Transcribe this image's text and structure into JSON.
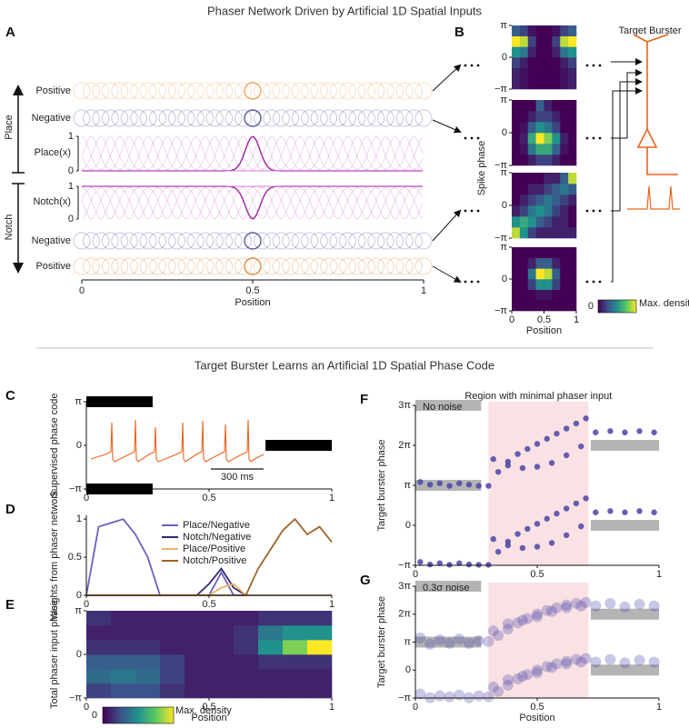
{
  "titles": {
    "top": "Phaser Network Driven by Artificial 1D Spatial Inputs",
    "bottom": "Target Burster Learns an Artificial 1D Spatial Phase Code"
  },
  "panel_a": {
    "label": "A",
    "rows": [
      "Positive",
      "Negative",
      "Place(x)",
      "Notch(x)",
      "Negative",
      "Positive"
    ],
    "groups": [
      "Place",
      "Notch"
    ],
    "place_ticks": [
      1,
      0
    ],
    "notch_ticks": [
      1,
      0
    ],
    "xlim": [
      0,
      1
    ],
    "xticks": [
      0,
      0.5,
      1
    ],
    "xlabel": "Position"
  },
  "panel_b": {
    "label": "B",
    "ylabel": "Spike phase",
    "target": "Target Burster",
    "colorbar_min": 0,
    "colorbar_max": "Max. density"
  },
  "chart_data": [
    {
      "type": "heatmap",
      "xlim": [
        0,
        1
      ],
      "ylim": [
        -3.1416,
        3.1416
      ],
      "yticks": [
        {
          "value": -3.1416,
          "label": "−π"
        },
        0,
        {
          "value": 3.1416,
          "label": "π"
        }
      ],
      "z": [
        [
          0.1,
          0.05,
          0,
          0,
          0,
          0,
          0.05,
          0.1
        ],
        [
          0.1,
          0.05,
          0,
          0,
          0,
          0,
          0.05,
          0.1
        ],
        [
          0.2,
          0.1,
          0,
          0,
          0,
          0,
          0.1,
          0.2
        ],
        [
          0.5,
          0.4,
          0.1,
          0,
          0,
          0.1,
          0.4,
          0.5
        ],
        [
          1,
          0.9,
          0.2,
          0,
          0,
          0.2,
          0.9,
          1
        ],
        [
          0.3,
          0.2,
          0.05,
          0,
          0,
          0.05,
          0.2,
          0.3
        ]
      ]
    },
    {
      "type": "heatmap",
      "xlim": [
        0,
        1
      ],
      "ylim": [
        -3.1416,
        3.1416
      ],
      "yticks": [
        {
          "value": -3.1416,
          "label": "−π"
        },
        0,
        {
          "value": 3.1416,
          "label": "π"
        }
      ],
      "z": [
        [
          0,
          0,
          0.1,
          0.2,
          0.2,
          0.1,
          0,
          0
        ],
        [
          0,
          0.05,
          0.4,
          0.6,
          0.6,
          0.3,
          0.05,
          0
        ],
        [
          0,
          0.1,
          0.6,
          1,
          0.8,
          0.5,
          0.1,
          0
        ],
        [
          0,
          0.05,
          0.3,
          0.5,
          0.4,
          0.2,
          0,
          0
        ],
        [
          0,
          0,
          0.1,
          0.2,
          0.2,
          0.1,
          0,
          0
        ],
        [
          0,
          0,
          0,
          0.3,
          0.1,
          0,
          0,
          0
        ]
      ]
    },
    {
      "type": "heatmap",
      "xlim": [
        0,
        1
      ],
      "ylim": [
        -3.1416,
        3.1416
      ],
      "yticks": [
        {
          "value": -3.1416,
          "label": "−π"
        },
        0,
        {
          "value": 3.1416,
          "label": "π"
        }
      ],
      "z": [
        [
          0.9,
          0.5,
          0.2,
          0.1,
          0.1,
          0.1,
          0.1,
          0.1
        ],
        [
          0.5,
          0.6,
          0.5,
          0.3,
          0.2,
          0.1,
          0.1,
          0
        ],
        [
          0.1,
          0.2,
          0.4,
          0.5,
          0.4,
          0.2,
          0.1,
          0
        ],
        [
          0,
          0.1,
          0.2,
          0.3,
          0.4,
          0.3,
          0.2,
          0.1
        ],
        [
          0,
          0,
          0.1,
          0.1,
          0.2,
          0.3,
          0.4,
          0.3
        ],
        [
          0,
          0,
          0,
          0,
          0.1,
          0.1,
          0.3,
          0.9
        ]
      ]
    },
    {
      "type": "heatmap",
      "xlim": [
        0,
        1
      ],
      "ylim": [
        -3.1416,
        3.1416
      ],
      "yticks": [
        {
          "value": -3.1416,
          "label": "−π"
        },
        0,
        {
          "value": 3.1416,
          "label": "π"
        }
      ],
      "xticks": [
        0,
        0.5,
        1
      ],
      "xlabel": "Position",
      "z": [
        [
          0,
          0,
          0,
          0,
          0,
          0,
          0,
          0
        ],
        [
          0,
          0,
          0,
          0.05,
          0.05,
          0,
          0,
          0
        ],
        [
          0,
          0,
          0.2,
          0.5,
          0.5,
          0.2,
          0,
          0
        ],
        [
          0,
          0,
          0.4,
          1,
          0.9,
          0.3,
          0,
          0
        ],
        [
          0,
          0,
          0.1,
          0.3,
          0.3,
          0.1,
          0,
          0
        ],
        [
          0,
          0,
          0,
          0,
          0,
          0,
          0,
          0
        ]
      ]
    },
    {
      "type": "segments",
      "label": "C",
      "ylabel": "Supervised phase code",
      "xlim": [
        0,
        1
      ],
      "ylim": [
        -3.1416,
        3.1416
      ],
      "yticks": [
        {
          "value": -3.1416,
          "label": "−π"
        },
        0,
        {
          "value": 3.1416,
          "label": "π"
        }
      ],
      "xticks": [
        0,
        0.5,
        1
      ],
      "segments": [
        {
          "x": [
            0,
            0.27
          ],
          "y": 3.1416
        },
        {
          "x": [
            0,
            0.27
          ],
          "y": -3.1416
        },
        {
          "x": [
            0.73,
            1
          ],
          "y": 0
        }
      ],
      "segment_color": "#000000",
      "scalebar": "300 ms"
    },
    {
      "type": "line",
      "label": "D",
      "ylabel": "Weights from phaser network",
      "xlim": [
        0,
        1
      ],
      "ylim": [
        0,
        1.05
      ],
      "yticks": [
        0,
        0.5,
        1
      ],
      "xticks": [
        0,
        0.5,
        1
      ],
      "x": [
        0,
        0.05,
        0.1,
        0.15,
        0.2,
        0.25,
        0.3,
        0.35,
        0.4,
        0.45,
        0.5,
        0.55,
        0.6,
        0.65,
        0.7,
        0.75,
        0.8,
        0.85,
        0.9,
        0.95,
        1
      ],
      "series": [
        {
          "name": "Place/Negative",
          "color": "#6a5fc4",
          "values": [
            0,
            0.9,
            0.95,
            1.0,
            0.8,
            0.5,
            0,
            0,
            0,
            0,
            0,
            0.3,
            0,
            0,
            0,
            0,
            0,
            0,
            0,
            0,
            0
          ]
        },
        {
          "name": "Notch/Negative",
          "color": "#2e2a6e",
          "values": [
            0,
            0,
            0,
            0,
            0,
            0,
            0,
            0,
            0,
            0,
            0.15,
            0.35,
            0.1,
            0,
            0,
            0,
            0,
            0,
            0,
            0,
            0
          ]
        },
        {
          "name": "Place/Positive",
          "color": "#f0b46a",
          "values": [
            0,
            0,
            0,
            0,
            0,
            0,
            0,
            0,
            0,
            0,
            0,
            0.1,
            0.15,
            0,
            0,
            0,
            0,
            0,
            0,
            0,
            0
          ]
        },
        {
          "name": "Notch/Positive",
          "color": "#a0632a",
          "values": [
            0,
            0,
            0,
            0,
            0,
            0,
            0,
            0,
            0,
            0,
            0,
            0,
            0,
            0,
            0.35,
            0.6,
            0.85,
            1.0,
            0.8,
            0.9,
            0.7
          ]
        }
      ]
    },
    {
      "type": "heatmap",
      "label": "E",
      "ylabel": "Total phaser input phase",
      "xlim": [
        0,
        1
      ],
      "ylim": [
        -3.1416,
        3.1416
      ],
      "yticks": [
        {
          "value": -3.1416,
          "label": "−π"
        },
        0,
        {
          "value": 3.1416,
          "label": "π"
        }
      ],
      "xticks": [
        0,
        0.5,
        1
      ],
      "xlabel": "Position",
      "colorbar_min": 0,
      "colorbar_max": "Max. density",
      "z": [
        [
          0.2,
          0.25,
          0.25,
          0.15,
          0.1,
          0.1,
          0.1,
          0.1,
          0.1,
          0.1
        ],
        [
          0.35,
          0.4,
          0.35,
          0.2,
          0.1,
          0.1,
          0.1,
          0.1,
          0.1,
          0.1
        ],
        [
          0.3,
          0.3,
          0.3,
          0.2,
          0.1,
          0.1,
          0.1,
          0.15,
          0.15,
          0.15
        ],
        [
          0.15,
          0.15,
          0.15,
          0.1,
          0.1,
          0.1,
          0.15,
          0.5,
          0.8,
          1
        ],
        [
          0.1,
          0.1,
          0.1,
          0.1,
          0.1,
          0.1,
          0.15,
          0.4,
          0.5,
          0.5
        ],
        [
          0.15,
          0.1,
          0.1,
          0.1,
          0.1,
          0.1,
          0.1,
          0.15,
          0.15,
          0.15
        ]
      ]
    },
    {
      "type": "scatter",
      "label": "F",
      "ylabel": "Target burster phase",
      "note": "No noise",
      "xlim": [
        0,
        1
      ],
      "ylim": [
        -3.1416,
        9.4248
      ],
      "yticks": [
        {
          "value": -3.1416,
          "label": "−π"
        },
        0,
        {
          "value": 3.1416,
          "label": "π"
        },
        {
          "value": 6.2832,
          "label": "2π"
        },
        {
          "value": 9.4248,
          "label": "3π"
        }
      ],
      "xticks": [
        0,
        0.5,
        1
      ],
      "region": [
        0.3,
        0.71
      ],
      "region_label": "Region with minimal phaser input",
      "alpha": 0.85,
      "segments": [
        {
          "x": [
            0,
            0.27
          ],
          "y": 9.4248
        },
        {
          "x": [
            0,
            0.27
          ],
          "y": 3.1416
        },
        {
          "x": [
            0.72,
            1
          ],
          "y": 6.2832
        },
        {
          "x": [
            0.72,
            1
          ],
          "y": 0
        }
      ],
      "segment_color": "#b4b4b4",
      "series": [
        {
          "color": "#4a44a8",
          "x": [
            0.02,
            0.06,
            0.1,
            0.14,
            0.18,
            0.22,
            0.26,
            0.32,
            0.38,
            0.44,
            0.5,
            0.56,
            0.62,
            0.68,
            0.74,
            0.8,
            0.86,
            0.92,
            0.98
          ],
          "values": [
            3.4,
            3.2,
            3.3,
            3.1,
            3.3,
            3.2,
            3.1,
            5.2,
            4.7,
            4.5,
            4.6,
            4.9,
            5.5,
            6.2,
            7.3,
            7.4,
            7.3,
            7.4,
            7.3
          ]
        },
        {
          "color": "#4a44a8",
          "x": [
            0.02,
            0.06,
            0.1,
            0.14,
            0.18,
            0.22,
            0.26,
            0.32,
            0.38,
            0.44,
            0.5,
            0.56,
            0.62,
            0.68,
            0.74,
            0.8,
            0.86,
            0.92,
            0.98
          ],
          "values": [
            -2.88,
            -3.08,
            -2.98,
            -3.1,
            -2.98,
            -3.08,
            -3.1,
            -1.08,
            -1.58,
            -1.78,
            -1.68,
            -1.38,
            -0.78,
            -0.08,
            1.02,
            1.12,
            1.02,
            1.12,
            1.02
          ]
        },
        {
          "color": "#4a44a8",
          "x": [
            0.3,
            0.34,
            0.38,
            0.42,
            0.46,
            0.5,
            0.54,
            0.58,
            0.62,
            0.66,
            0.7
          ],
          "values": [
            3.1,
            4.2,
            5.0,
            5.6,
            6.0,
            6.4,
            6.8,
            7.2,
            7.6,
            8.0,
            8.4
          ]
        },
        {
          "color": "#4a44a8",
          "x": [
            0.3,
            0.34,
            0.38,
            0.42,
            0.46,
            0.5,
            0.54,
            0.58,
            0.62,
            0.66,
            0.7
          ],
          "values": [
            -3.1,
            -2.08,
            -1.28,
            -0.68,
            -0.28,
            0.12,
            0.52,
            0.92,
            1.32,
            1.72,
            2.12
          ]
        }
      ]
    },
    {
      "type": "scatter",
      "label": "G",
      "ylabel": "Target burster phase",
      "note": "0.3σ noise",
      "xlim": [
        0,
        1
      ],
      "ylim": [
        -3.1416,
        9.4248
      ],
      "yticks": [
        {
          "value": -3.1416,
          "label": "−π"
        },
        0,
        {
          "value": 3.1416,
          "label": "π"
        },
        {
          "value": 6.2832,
          "label": "2π"
        },
        {
          "value": 9.4248,
          "label": "3π"
        }
      ],
      "xticks": [
        0,
        0.5,
        1
      ],
      "xlabel": "Position",
      "region": [
        0.3,
        0.71
      ],
      "alpha": 0.3,
      "segments": [
        {
          "x": [
            0,
            0.27
          ],
          "y": 9.4248
        },
        {
          "x": [
            0,
            0.27
          ],
          "y": 3.1416
        },
        {
          "x": [
            0.72,
            1
          ],
          "y": 6.2832
        },
        {
          "x": [
            0.72,
            1
          ],
          "y": 0
        }
      ],
      "segment_color": "#b4b4b4",
      "series": [
        {
          "color": "#4a44a8",
          "x": [
            0.02,
            0.06,
            0.1,
            0.14,
            0.18,
            0.22,
            0.26,
            0.32,
            0.38,
            0.44,
            0.5,
            0.56,
            0.62,
            0.68,
            0.74,
            0.8,
            0.86,
            0.92,
            0.98
          ],
          "values": [
            3.6,
            2.9,
            3.4,
            3.0,
            3.5,
            3.0,
            3.3,
            4.4,
            5.2,
            5.6,
            6.0,
            6.6,
            7.0,
            7.2,
            7.2,
            7.5,
            7.1,
            7.4,
            7.2
          ]
        },
        {
          "color": "#4a44a8",
          "x": [
            0.02,
            0.06,
            0.1,
            0.14,
            0.18,
            0.22,
            0.26,
            0.32,
            0.38,
            0.44,
            0.5,
            0.56,
            0.62,
            0.68,
            0.74,
            0.8,
            0.86,
            0.92,
            0.98
          ],
          "values": [
            -2.7,
            -3.1,
            -2.9,
            -3.0,
            -2.8,
            -3.1,
            -2.9,
            -1.9,
            -1.1,
            -0.7,
            -0.3,
            0.3,
            0.7,
            0.9,
            0.9,
            1.2,
            0.8,
            1.1,
            0.9
          ]
        },
        {
          "color": "#4a44a8",
          "x": [
            0.3,
            0.34,
            0.38,
            0.42,
            0.46,
            0.5,
            0.54,
            0.58,
            0.62,
            0.66,
            0.7
          ],
          "values": [
            3.2,
            3.9,
            4.6,
            5.3,
            5.8,
            6.3,
            6.7,
            7.0,
            7.3,
            7.5,
            7.6
          ]
        },
        {
          "color": "#4a44a8",
          "x": [
            0.3,
            0.34,
            0.38,
            0.42,
            0.46,
            0.5,
            0.54,
            0.58,
            0.62,
            0.66,
            0.7
          ],
          "values": [
            -3.0,
            -2.4,
            -1.7,
            -1.0,
            -0.5,
            0.0,
            0.4,
            0.7,
            1.0,
            1.2,
            1.3
          ]
        }
      ]
    }
  ]
}
